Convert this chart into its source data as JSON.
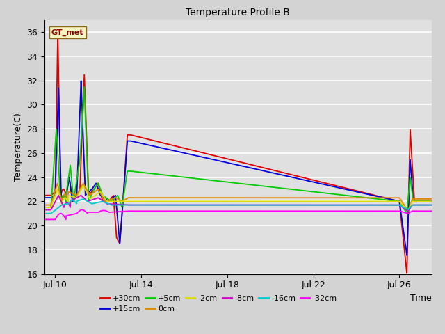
{
  "title": "Temperature Profile B",
  "xlabel": "Time",
  "ylabel": "Temperature(C)",
  "ylim": [
    16,
    37
  ],
  "yticks": [
    16,
    18,
    20,
    22,
    24,
    26,
    28,
    30,
    32,
    34,
    36
  ],
  "background_color": "#d8d8d8",
  "plot_bg_color": "#e0e0e0",
  "grid_color": "white",
  "annotation_text": "GT_met",
  "series_colors": {
    "+30cm": "#dd0000",
    "+15cm": "#0000dd",
    "+5cm": "#00cc00",
    "0cm": "#dd8800",
    "-2cm": "#dddd00",
    "-8cm": "#cc00cc",
    "-16cm": "#00cccc",
    "-32cm": "#ff00ff"
  },
  "xstart_day": 9.5,
  "xend_day": 27.5,
  "xtick_days": [
    10,
    14,
    18,
    22,
    26
  ],
  "xtick_labels": [
    "Jul 10",
    "Jul 14",
    "Jul 18",
    "Jul 22",
    "Jul 26"
  ],
  "legend_order": [
    "+30cm",
    "+15cm",
    "+5cm",
    "0cm",
    "-2cm",
    "-8cm",
    "-16cm",
    "-32cm"
  ]
}
